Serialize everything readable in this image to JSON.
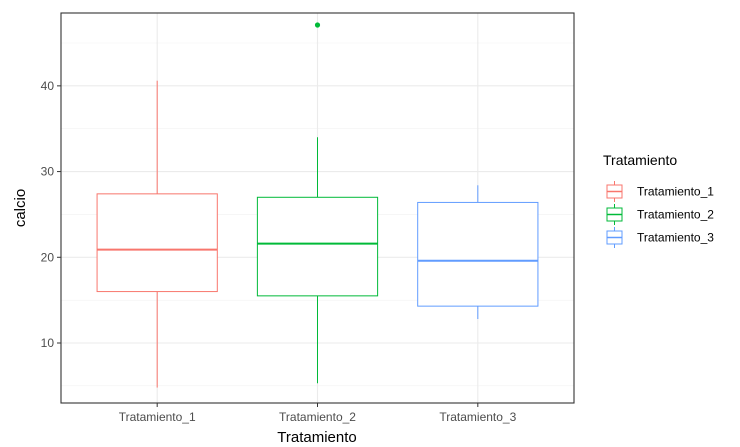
{
  "chart_data": {
    "type": "boxplot",
    "xlabel": "Tratamiento",
    "ylabel": "calcio",
    "ylim": [
      3,
      48.5
    ],
    "yticks": [
      10,
      20,
      30,
      40
    ],
    "grid": true,
    "legend": {
      "title": "Tratamiento",
      "placement": "right"
    },
    "categories": [
      "Tratamiento_1",
      "Tratamiento_2",
      "Tratamiento_3"
    ],
    "series": [
      {
        "name": "Tratamiento_1",
        "color": "#F8766D",
        "whisker_low": 4.8,
        "q1": 16.0,
        "median": 20.9,
        "q3": 27.4,
        "whisker_high": 40.6,
        "outliers": []
      },
      {
        "name": "Tratamiento_2",
        "color": "#00BA38",
        "whisker_low": 5.3,
        "q1": 15.5,
        "median": 21.6,
        "q3": 27.0,
        "whisker_high": 34.0,
        "outliers": [
          47.1
        ]
      },
      {
        "name": "Tratamiento_3",
        "color": "#619CFF",
        "whisker_low": 12.8,
        "q1": 14.3,
        "median": 19.6,
        "q3": 26.4,
        "whisker_high": 28.4,
        "outliers": []
      }
    ]
  }
}
